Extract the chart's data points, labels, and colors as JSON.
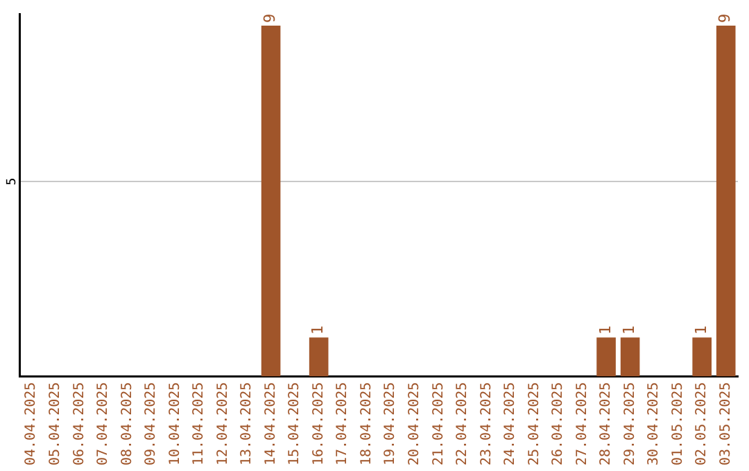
{
  "chart_data": {
    "type": "bar",
    "categories": [
      "04.04.2025",
      "05.04.2025",
      "06.04.2025",
      "07.04.2025",
      "08.04.2025",
      "09.04.2025",
      "10.04.2025",
      "11.04.2025",
      "12.04.2025",
      "13.04.2025",
      "14.04.2025",
      "15.04.2025",
      "16.04.2025",
      "17.04.2025",
      "18.04.2025",
      "19.04.2025",
      "20.04.2025",
      "21.04.2025",
      "22.04.2025",
      "23.04.2025",
      "24.04.2025",
      "25.04.2025",
      "26.04.2025",
      "27.04.2025",
      "28.04.2025",
      "29.04.2025",
      "30.04.2025",
      "01.05.2025",
      "02.05.2025",
      "03.05.2025"
    ],
    "values": [
      0,
      0,
      0,
      0,
      0,
      0,
      0,
      0,
      0,
      0,
      9,
      0,
      1,
      0,
      0,
      0,
      0,
      0,
      0,
      0,
      0,
      0,
      0,
      0,
      1,
      1,
      0,
      0,
      1,
      9
    ],
    "color": "#a0552a",
    "ylim": [
      0,
      9.3
    ],
    "yticks": [
      {
        "value": 0,
        "label": null
      },
      5
    ],
    "grid": "y",
    "value_labels": [
      null,
      null,
      null,
      null,
      null,
      null,
      null,
      null,
      null,
      null,
      "9",
      null,
      "1",
      null,
      null,
      null,
      null,
      null,
      null,
      null,
      null,
      null,
      null,
      null,
      "1",
      "1",
      null,
      null,
      "1",
      "9"
    ],
    "legend": false
  }
}
